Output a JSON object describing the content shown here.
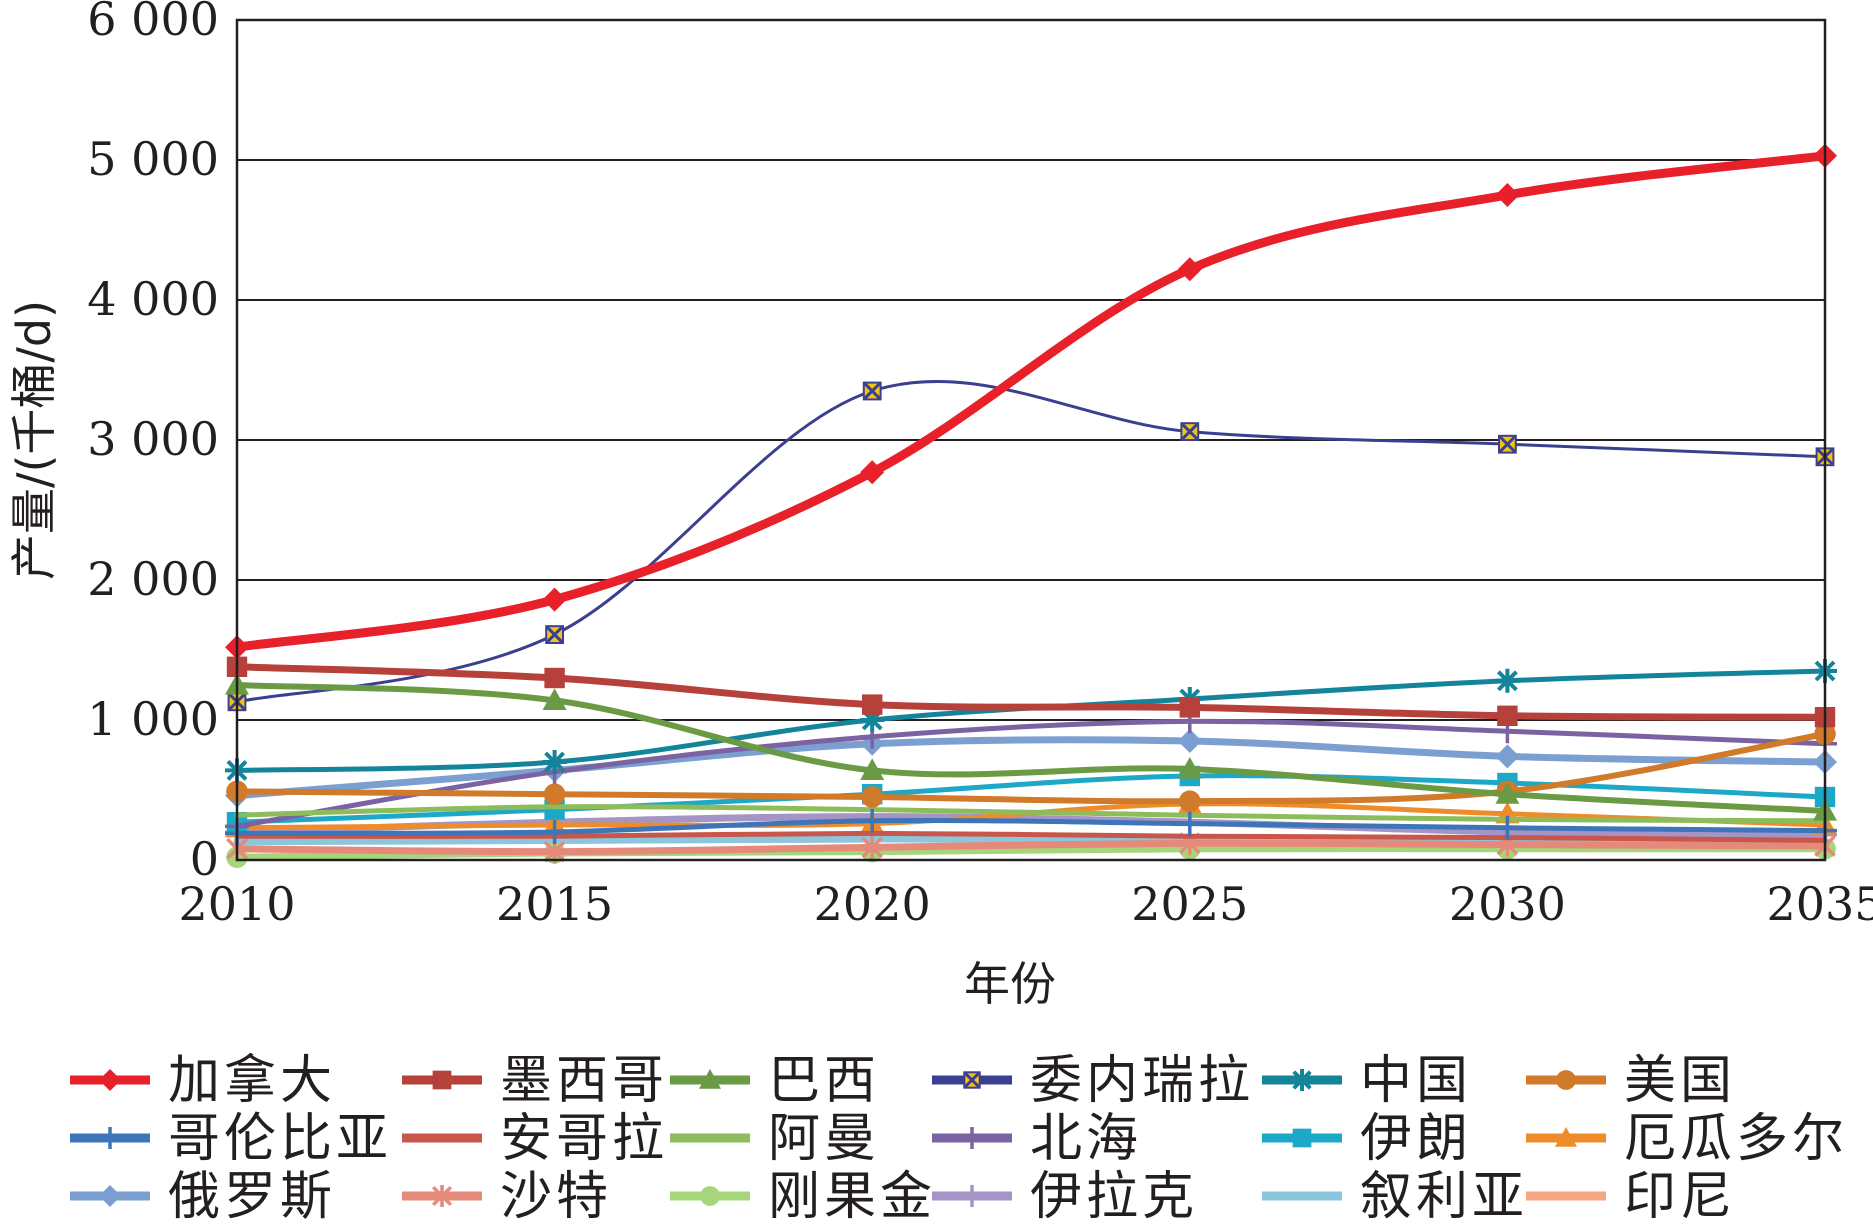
{
  "chart_data": {
    "type": "line",
    "title": "",
    "xlabel": "年份",
    "ylabel": "产量/(千桶/d)",
    "x": [
      2010,
      2015,
      2020,
      2025,
      2030,
      2035
    ],
    "xtick_labels": [
      "2010",
      "2015",
      "2020",
      "2025",
      "2030",
      "2035"
    ],
    "ytick_values": [
      0,
      1000,
      2000,
      3000,
      4000,
      5000,
      6000
    ],
    "ytick_labels": [
      "0",
      "1 000",
      "2 000",
      "3 000",
      "4 000",
      "5 000",
      "6 000"
    ],
    "ylim": [
      0,
      6000
    ],
    "grid": "horizontal",
    "legend_position": "bottom",
    "series": [
      {
        "name": "加拿大",
        "color": "#e8202a",
        "marker": "diamond",
        "values": [
          1520,
          1860,
          2770,
          4220,
          4750,
          5030
        ]
      },
      {
        "name": "墨西哥",
        "color": "#b5413a",
        "marker": "square",
        "values": [
          1380,
          1300,
          1110,
          1090,
          1030,
          1020
        ]
      },
      {
        "name": "巴西",
        "color": "#6a9a44",
        "marker": "triangle",
        "values": [
          1250,
          1140,
          640,
          650,
          470,
          350
        ]
      },
      {
        "name": "委内瑞拉",
        "color": "#3a3f8f",
        "marker": "xbox",
        "values": [
          1130,
          1610,
          3350,
          3060,
          2970,
          2880
        ]
      },
      {
        "name": "中国",
        "color": "#14849a",
        "marker": "star",
        "values": [
          640,
          700,
          1000,
          1150,
          1280,
          1350
        ]
      },
      {
        "name": "美国",
        "color": "#d07a2a",
        "marker": "circle",
        "values": [
          490,
          470,
          450,
          420,
          490,
          900
        ]
      },
      {
        "name": "哥伦比亚",
        "color": "#3e74b8",
        "marker": "plus",
        "values": [
          190,
          200,
          280,
          260,
          230,
          210
        ]
      },
      {
        "name": "安哥拉",
        "color": "#c9564a",
        "marker": "none",
        "values": [
          170,
          170,
          190,
          170,
          160,
          140
        ]
      },
      {
        "name": "阿曼",
        "color": "#8dbd5a",
        "marker": "none",
        "values": [
          320,
          380,
          360,
          320,
          290,
          280
        ]
      },
      {
        "name": "北海",
        "color": "#7b62a3",
        "marker": "plus",
        "values": [
          240,
          630,
          880,
          990,
          920,
          830
        ]
      },
      {
        "name": "伊朗",
        "color": "#1ea8c8",
        "marker": "square",
        "values": [
          270,
          360,
          470,
          600,
          550,
          450
        ]
      },
      {
        "name": "厄瓜多尔",
        "color": "#ef8c2a",
        "marker": "triangle",
        "values": [
          230,
          250,
          260,
          400,
          330,
          250
        ]
      },
      {
        "name": "俄罗斯",
        "color": "#7a9fd0",
        "marker": "diamond",
        "values": [
          460,
          640,
          830,
          850,
          740,
          700
        ]
      },
      {
        "name": "沙特",
        "color": "#e58a7a",
        "marker": "asterisk",
        "values": [
          80,
          60,
          90,
          120,
          110,
          100
        ]
      },
      {
        "name": "刚果金",
        "color": "#a6d67a",
        "marker": "circle",
        "values": [
          20,
          50,
          60,
          80,
          80,
          80
        ]
      },
      {
        "name": "伊拉克",
        "color": "#a595c6",
        "marker": "plus",
        "values": [
          200,
          270,
          310,
          270,
          200,
          180
        ]
      },
      {
        "name": "叙利亚",
        "color": "#8cc6dc",
        "marker": "none",
        "values": [
          130,
          140,
          150,
          150,
          140,
          130
        ]
      },
      {
        "name": "印尼",
        "color": "#f6a782",
        "marker": "none",
        "values": [
          140,
          140,
          150,
          140,
          130,
          120
        ]
      }
    ]
  }
}
